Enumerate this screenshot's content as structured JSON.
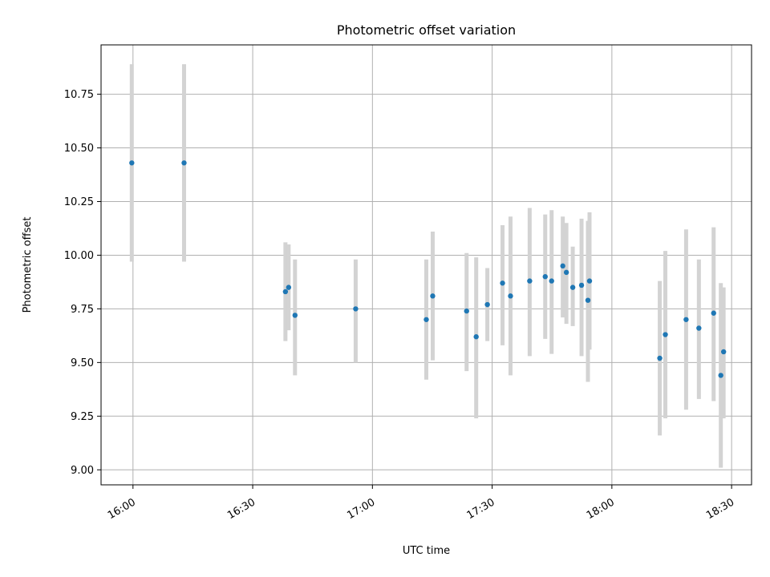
{
  "chart_data": {
    "type": "scatter",
    "title": "Photometric offset variation",
    "xlabel": "UTC time",
    "ylabel": "Photometric offset",
    "grid": true,
    "xlim": [
      "15:52",
      "18:35"
    ],
    "ylim": [
      8.93,
      10.98
    ],
    "x_ticks": [
      "16:00",
      "16:30",
      "17:00",
      "17:30",
      "18:00",
      "18:30"
    ],
    "y_ticks": [
      "9.00",
      "9.25",
      "9.50",
      "9.75",
      "10.00",
      "10.25",
      "10.50",
      "10.75"
    ],
    "colors": {
      "point": "#1f77b4",
      "error_bar": "#d3d3d3",
      "grid": "#b0b0b0"
    },
    "points": [
      {
        "x": "15:59.7",
        "y": 10.43,
        "low": 9.97,
        "high": 10.89
      },
      {
        "x": "16:12.8",
        "y": 10.43,
        "low": 9.97,
        "high": 10.89
      },
      {
        "x": "16:38.2",
        "y": 9.83,
        "low": 9.6,
        "high": 10.06
      },
      {
        "x": "16:39.0",
        "y": 9.85,
        "low": 9.65,
        "high": 10.05
      },
      {
        "x": "16:40.6",
        "y": 9.72,
        "low": 9.44,
        "high": 9.98
      },
      {
        "x": "16:55.8",
        "y": 9.75,
        "low": 9.5,
        "high": 9.98
      },
      {
        "x": "17:13.5",
        "y": 9.7,
        "low": 9.42,
        "high": 9.98
      },
      {
        "x": "17:15.1",
        "y": 9.81,
        "low": 9.51,
        "high": 10.11
      },
      {
        "x": "17:23.6",
        "y": 9.74,
        "low": 9.46,
        "high": 10.01
      },
      {
        "x": "17:26.0",
        "y": 9.62,
        "low": 9.24,
        "high": 9.99
      },
      {
        "x": "17:28.8",
        "y": 9.77,
        "low": 9.6,
        "high": 9.94
      },
      {
        "x": "17:32.6",
        "y": 9.87,
        "low": 9.58,
        "high": 10.14
      },
      {
        "x": "17:34.6",
        "y": 9.81,
        "low": 9.44,
        "high": 10.18
      },
      {
        "x": "17:39.4",
        "y": 9.88,
        "low": 9.53,
        "high": 10.22
      },
      {
        "x": "17:43.3",
        "y": 9.9,
        "low": 9.61,
        "high": 10.19
      },
      {
        "x": "17:44.9",
        "y": 9.88,
        "low": 9.54,
        "high": 10.21
      },
      {
        "x": "17:47.7",
        "y": 9.95,
        "low": 9.71,
        "high": 10.18
      },
      {
        "x": "17:48.6",
        "y": 9.92,
        "low": 9.68,
        "high": 10.15
      },
      {
        "x": "17:50.2",
        "y": 9.85,
        "low": 9.67,
        "high": 10.04
      },
      {
        "x": "17:52.4",
        "y": 9.86,
        "low": 9.53,
        "high": 10.17
      },
      {
        "x": "17:54.0",
        "y": 9.79,
        "low": 9.41,
        "high": 10.16
      },
      {
        "x": "17:54.4",
        "y": 9.88,
        "low": 9.56,
        "high": 10.2
      },
      {
        "x": "18:12.0",
        "y": 9.52,
        "low": 9.16,
        "high": 9.88
      },
      {
        "x": "18:13.4",
        "y": 9.63,
        "low": 9.24,
        "high": 10.02
      },
      {
        "x": "18:18.6",
        "y": 9.7,
        "low": 9.28,
        "high": 10.12
      },
      {
        "x": "18:21.8",
        "y": 9.66,
        "low": 9.33,
        "high": 9.98
      },
      {
        "x": "18:25.5",
        "y": 9.73,
        "low": 9.32,
        "high": 10.13
      },
      {
        "x": "18:27.3",
        "y": 9.44,
        "low": 9.01,
        "high": 9.87
      },
      {
        "x": "18:28.0",
        "y": 9.55,
        "low": 9.24,
        "high": 9.85
      }
    ]
  }
}
